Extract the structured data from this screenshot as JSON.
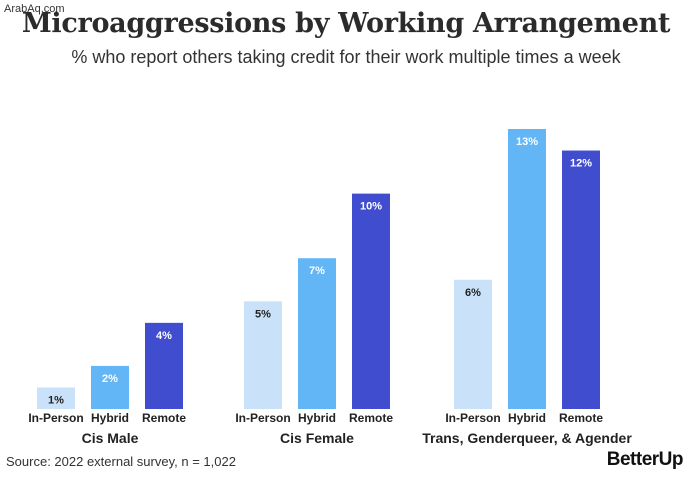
{
  "watermark": "ArabAq.com",
  "title": "Microaggressions by Working Arrangement",
  "subtitle": "% who report others taking credit for their work multiple times a week",
  "source": "Source: 2022 external survey, n = 1,022",
  "brand": "BetterUp",
  "colors": {
    "In-Person": "#c9e2fa",
    "Hybrid": "#63b6f6",
    "Remote": "#3f4dce"
  },
  "chart_data": {
    "type": "bar",
    "groups": [
      "Cis Male",
      "Cis Female",
      "Trans, Genderqueer, & Agender"
    ],
    "categories": [
      "In-Person",
      "Hybrid",
      "Remote"
    ],
    "values": [
      [
        1,
        2,
        4
      ],
      [
        5,
        7,
        10
      ],
      [
        6,
        13,
        12
      ]
    ],
    "labels": [
      [
        "1%",
        "2%",
        "4%"
      ],
      [
        "5%",
        "7%",
        "10%"
      ],
      [
        "6%",
        "13%",
        "12%"
      ]
    ],
    "unit": "%",
    "ylim": [
      0,
      13
    ],
    "grid": false,
    "legend": "none"
  }
}
